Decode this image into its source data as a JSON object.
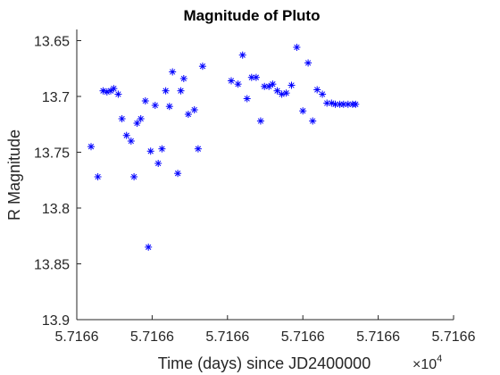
{
  "chart_data": {
    "type": "scatter",
    "title": "Magnitude of Pluto",
    "xlabel": "Time (days) since JD2400000",
    "ylabel": "R Magnitude",
    "x_tick_labels": [
      "5.7166",
      "5.7166",
      "5.7166",
      "5.7166",
      "5.7166",
      "5.7166"
    ],
    "x_multiplier_base": "×10",
    "x_multiplier_exponent": "4",
    "y_ticks": [
      13.65,
      13.7,
      13.75,
      13.8,
      13.85,
      13.9
    ],
    "y_tick_labels": [
      "13.65",
      "13.7",
      "13.75",
      "13.8",
      "13.85",
      "13.9"
    ],
    "y_reversed": true,
    "ylim": [
      13.64,
      13.9
    ],
    "x_tick_positions": [
      0.0,
      1.0,
      2.0,
      3.0,
      4.0,
      5.0
    ],
    "xlim": [
      0.0,
      5.0
    ],
    "grid": false,
    "marker": "*",
    "marker_color": "#0000ff",
    "axis_color": "#262626",
    "series": [
      {
        "x": [
          0.19,
          0.28,
          0.35,
          0.4,
          0.45,
          0.49,
          0.55,
          0.6,
          0.66,
          0.72,
          0.76,
          0.8,
          0.85,
          0.91,
          0.95,
          0.98,
          1.04,
          1.08,
          1.13,
          1.18,
          1.23,
          1.27,
          1.34,
          1.38,
          1.42,
          1.48,
          1.56,
          1.61,
          1.67,
          2.05,
          2.14,
          2.2,
          2.26,
          2.32,
          2.38,
          2.44,
          2.49,
          2.55,
          2.6,
          2.66,
          2.72,
          2.78,
          2.85,
          2.92,
          3.0,
          3.07,
          3.13,
          3.19,
          3.26,
          3.32,
          3.38,
          3.43,
          3.49,
          3.54,
          3.6,
          3.66,
          3.7
        ],
        "y": [
          13.745,
          13.772,
          13.695,
          13.696,
          13.695,
          13.693,
          13.698,
          13.72,
          13.735,
          13.74,
          13.772,
          13.724,
          13.72,
          13.704,
          13.835,
          13.749,
          13.708,
          13.76,
          13.747,
          13.695,
          13.709,
          13.678,
          13.769,
          13.695,
          13.684,
          13.716,
          13.712,
          13.747,
          13.673,
          13.686,
          13.689,
          13.663,
          13.702,
          13.683,
          13.683,
          13.722,
          13.691,
          13.691,
          13.689,
          13.695,
          13.698,
          13.697,
          13.69,
          13.656,
          13.713,
          13.67,
          13.722,
          13.694,
          13.698,
          13.706,
          13.706,
          13.707,
          13.707,
          13.707,
          13.707,
          13.707,
          13.707
        ]
      }
    ]
  }
}
